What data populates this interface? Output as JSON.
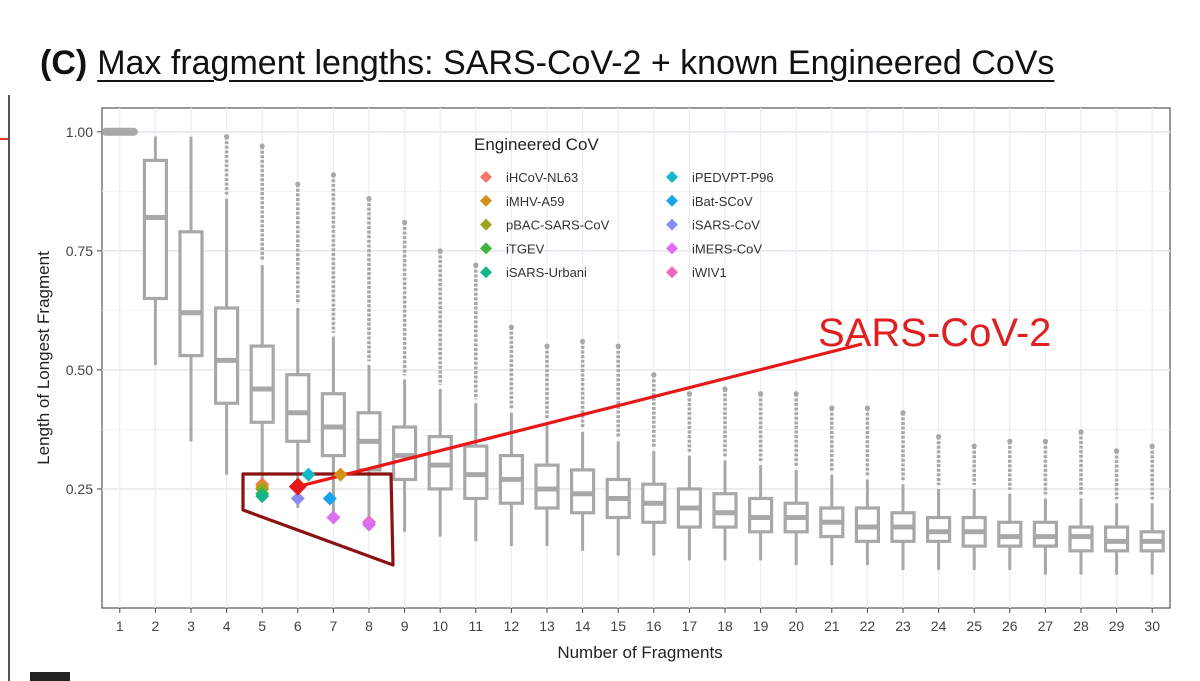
{
  "heading": {
    "tag": "(C)",
    "title": "Max fragment lengths: SARS-CoV-2 + known Engineered CoVs"
  },
  "chart_data": {
    "type": "box",
    "xlabel": "Number of Fragments",
    "ylabel": "Length of Longest Fragment",
    "categories": [
      "1",
      "2",
      "3",
      "4",
      "5",
      "6",
      "7",
      "8",
      "9",
      "10",
      "11",
      "12",
      "13",
      "14",
      "15",
      "16",
      "17",
      "18",
      "19",
      "20",
      "21",
      "22",
      "23",
      "24",
      "25",
      "26",
      "27",
      "28",
      "29",
      "30"
    ],
    "yticks": [
      {
        "value": 0.25,
        "label": "0.25"
      },
      {
        "value": 0.5,
        "label": "0.50"
      },
      {
        "value": 0.75,
        "label": "0.75"
      },
      {
        "value": 1.0,
        "label": "1.00"
      }
    ],
    "ylim": [
      0.0,
      1.05
    ],
    "box_color": "#a8a8a8",
    "boxes": [
      {
        "x": 1,
        "min": 1.0,
        "q1": 1.0,
        "median": 1.0,
        "q3": 1.0,
        "max": 1.0,
        "outlier_top": 1.0
      },
      {
        "x": 2,
        "min": 0.51,
        "q1": 0.65,
        "median": 0.82,
        "q3": 0.94,
        "max": 0.99,
        "outlier_top": 0.99
      },
      {
        "x": 3,
        "min": 0.35,
        "q1": 0.53,
        "median": 0.62,
        "q3": 0.79,
        "max": 0.99,
        "outlier_top": 0.99
      },
      {
        "x": 4,
        "min": 0.28,
        "q1": 0.43,
        "median": 0.52,
        "q3": 0.63,
        "max": 0.86,
        "outlier_top": 0.99
      },
      {
        "x": 5,
        "min": 0.24,
        "q1": 0.39,
        "median": 0.46,
        "q3": 0.55,
        "max": 0.72,
        "outlier_top": 0.97
      },
      {
        "x": 6,
        "min": 0.21,
        "q1": 0.35,
        "median": 0.41,
        "q3": 0.49,
        "max": 0.63,
        "outlier_top": 0.89
      },
      {
        "x": 7,
        "min": 0.19,
        "q1": 0.32,
        "median": 0.38,
        "q3": 0.45,
        "max": 0.57,
        "outlier_top": 0.91
      },
      {
        "x": 8,
        "min": 0.17,
        "q1": 0.29,
        "median": 0.35,
        "q3": 0.41,
        "max": 0.51,
        "outlier_top": 0.86
      },
      {
        "x": 9,
        "min": 0.16,
        "q1": 0.27,
        "median": 0.32,
        "q3": 0.38,
        "max": 0.48,
        "outlier_top": 0.81
      },
      {
        "x": 10,
        "min": 0.15,
        "q1": 0.25,
        "median": 0.3,
        "q3": 0.36,
        "max": 0.46,
        "outlier_top": 0.75
      },
      {
        "x": 11,
        "min": 0.14,
        "q1": 0.23,
        "median": 0.28,
        "q3": 0.34,
        "max": 0.43,
        "outlier_top": 0.72
      },
      {
        "x": 12,
        "min": 0.13,
        "q1": 0.22,
        "median": 0.27,
        "q3": 0.32,
        "max": 0.41,
        "outlier_top": 0.59
      },
      {
        "x": 13,
        "min": 0.13,
        "q1": 0.21,
        "median": 0.25,
        "q3": 0.3,
        "max": 0.39,
        "outlier_top": 0.55
      },
      {
        "x": 14,
        "min": 0.12,
        "q1": 0.2,
        "median": 0.24,
        "q3": 0.29,
        "max": 0.37,
        "outlier_top": 0.56
      },
      {
        "x": 15,
        "min": 0.11,
        "q1": 0.19,
        "median": 0.23,
        "q3": 0.27,
        "max": 0.35,
        "outlier_top": 0.55
      },
      {
        "x": 16,
        "min": 0.11,
        "q1": 0.18,
        "median": 0.22,
        "q3": 0.26,
        "max": 0.33,
        "outlier_top": 0.49
      },
      {
        "x": 17,
        "min": 0.1,
        "q1": 0.17,
        "median": 0.21,
        "q3": 0.25,
        "max": 0.32,
        "outlier_top": 0.45
      },
      {
        "x": 18,
        "min": 0.1,
        "q1": 0.17,
        "median": 0.2,
        "q3": 0.24,
        "max": 0.31,
        "outlier_top": 0.46
      },
      {
        "x": 19,
        "min": 0.1,
        "q1": 0.16,
        "median": 0.19,
        "q3": 0.23,
        "max": 0.3,
        "outlier_top": 0.45
      },
      {
        "x": 20,
        "min": 0.09,
        "q1": 0.16,
        "median": 0.19,
        "q3": 0.22,
        "max": 0.29,
        "outlier_top": 0.45
      },
      {
        "x": 21,
        "min": 0.09,
        "q1": 0.15,
        "median": 0.18,
        "q3": 0.21,
        "max": 0.28,
        "outlier_top": 0.42
      },
      {
        "x": 22,
        "min": 0.09,
        "q1": 0.14,
        "median": 0.17,
        "q3": 0.21,
        "max": 0.27,
        "outlier_top": 0.42
      },
      {
        "x": 23,
        "min": 0.08,
        "q1": 0.14,
        "median": 0.17,
        "q3": 0.2,
        "max": 0.26,
        "outlier_top": 0.41
      },
      {
        "x": 24,
        "min": 0.08,
        "q1": 0.14,
        "median": 0.16,
        "q3": 0.19,
        "max": 0.25,
        "outlier_top": 0.36
      },
      {
        "x": 25,
        "min": 0.08,
        "q1": 0.13,
        "median": 0.16,
        "q3": 0.19,
        "max": 0.25,
        "outlier_top": 0.34
      },
      {
        "x": 26,
        "min": 0.08,
        "q1": 0.13,
        "median": 0.15,
        "q3": 0.18,
        "max": 0.24,
        "outlier_top": 0.35
      },
      {
        "x": 27,
        "min": 0.07,
        "q1": 0.13,
        "median": 0.15,
        "q3": 0.18,
        "max": 0.23,
        "outlier_top": 0.35
      },
      {
        "x": 28,
        "min": 0.07,
        "q1": 0.12,
        "median": 0.15,
        "q3": 0.17,
        "max": 0.23,
        "outlier_top": 0.37
      },
      {
        "x": 29,
        "min": 0.07,
        "q1": 0.12,
        "median": 0.14,
        "q3": 0.17,
        "max": 0.22,
        "outlier_top": 0.33
      },
      {
        "x": 30,
        "min": 0.07,
        "q1": 0.12,
        "median": 0.14,
        "q3": 0.16,
        "max": 0.22,
        "outlier_top": 0.34
      }
    ],
    "legend": {
      "title": "Engineered CoV",
      "position": "top",
      "entries": [
        {
          "name": "iHCoV-NL63",
          "color": "#f4776a"
        },
        {
          "name": "iMHV-A59",
          "color": "#d39216"
        },
        {
          "name": "pBAC-SARS-CoV",
          "color": "#9ba41c"
        },
        {
          "name": "iTGEV",
          "color": "#3db53d"
        },
        {
          "name": "iSARS-Urbani",
          "color": "#12b58a"
        },
        {
          "name": "iPEDVPT-P96",
          "color": "#13b9c9"
        },
        {
          "name": "iBat-SCoV",
          "color": "#17a4e8"
        },
        {
          "name": "iSARS-CoV",
          "color": "#8c8cf5"
        },
        {
          "name": "iMERS-CoV",
          "color": "#dd6ef0"
        },
        {
          "name": "iWIV1",
          "color": "#f165ba"
        }
      ]
    },
    "engineered_points": [
      {
        "name": "iHCoV-NL63",
        "x": 5,
        "y": 0.26
      },
      {
        "name": "iMHV-A59",
        "x": 5,
        "y": 0.255
      },
      {
        "name": "pBAC-SARS-CoV",
        "x": 5,
        "y": 0.25
      },
      {
        "name": "iTGEV",
        "x": 5,
        "y": 0.24
      },
      {
        "name": "iSARS-Urbani",
        "x": 5,
        "y": 0.235
      },
      {
        "name": "iSARS-CoV",
        "x": 6,
        "y": 0.23
      },
      {
        "name": "iPEDVPT-P96",
        "x": 6.3,
        "y": 0.28
      },
      {
        "name": "iBat-SCoV",
        "x": 6.9,
        "y": 0.23
      },
      {
        "name": "iMHV-A59",
        "x": 7.2,
        "y": 0.28
      },
      {
        "name": "iMERS-CoV",
        "x": 7,
        "y": 0.19
      },
      {
        "name": "iWIV1",
        "x": 8,
        "y": 0.18
      },
      {
        "name": "iMERS-CoV",
        "x": 8,
        "y": 0.175
      }
    ],
    "highlight": {
      "name": "SARS-CoV-2",
      "x": 6,
      "y": 0.255,
      "color": "#e81818"
    },
    "annotation": {
      "text": "SARS-CoV-2",
      "color": "#e02020"
    }
  }
}
